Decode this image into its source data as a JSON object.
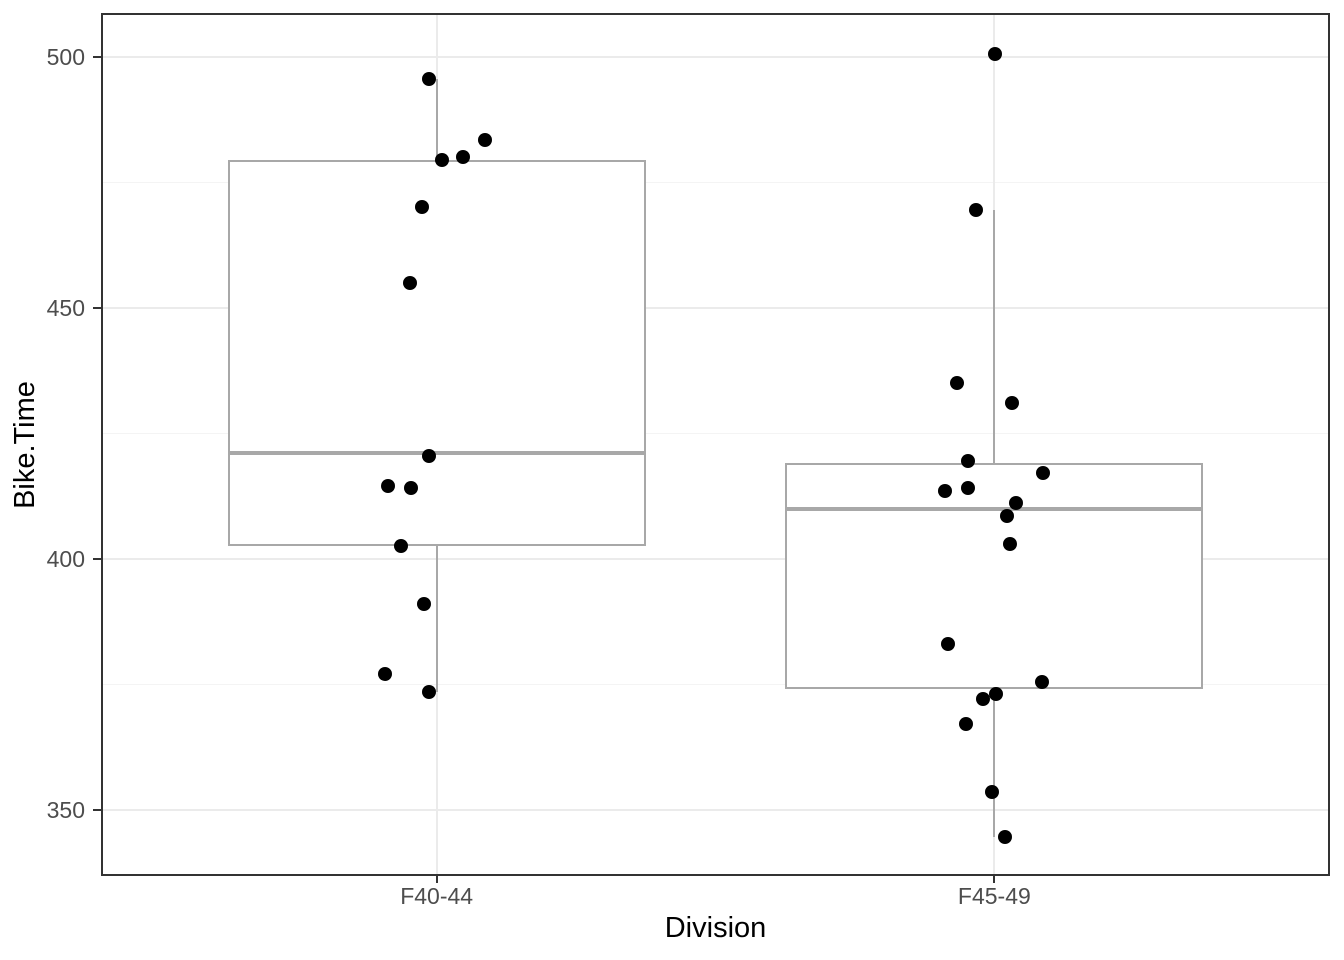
{
  "chart_data": {
    "type": "boxplot",
    "title": "",
    "xlabel": "Division",
    "ylabel": "Bike.Time",
    "categories": [
      "F40-44",
      "F45-49"
    ],
    "y_ticks": [
      500,
      450,
      400,
      350
    ],
    "y_minor_ticks": [
      475,
      425,
      375
    ],
    "ylim": [
      337,
      508.5
    ],
    "legend": "none",
    "grid": "horizontal major+minor, vertical major at each category",
    "series": [
      {
        "name": "F40-44",
        "box": {
          "q1": 402.5,
          "median": 421,
          "q3": 479.5,
          "whisker_low": 373.5,
          "whisker_high": 495.5
        },
        "points": [
          {
            "v": 495.5,
            "dx": -8
          },
          {
            "v": 483.5,
            "dx": 48
          },
          {
            "v": 480,
            "dx": 26
          },
          {
            "v": 479.5,
            "dx": 5
          },
          {
            "v": 470,
            "dx": -15
          },
          {
            "v": 455,
            "dx": -27
          },
          {
            "v": 420.5,
            "dx": -8
          },
          {
            "v": 414.5,
            "dx": -49
          },
          {
            "v": 414,
            "dx": -26
          },
          {
            "v": 402.5,
            "dx": -36
          },
          {
            "v": 391,
            "dx": -13
          },
          {
            "v": 377,
            "dx": -52
          },
          {
            "v": 373.5,
            "dx": -8
          }
        ]
      },
      {
        "name": "F45-49",
        "box": {
          "q1": 374,
          "median": 410,
          "q3": 419,
          "whisker_low": 344.5,
          "whisker_high": 469.5
        },
        "points": [
          {
            "v": 500.5,
            "dx": 1
          },
          {
            "v": 469.5,
            "dx": -18
          },
          {
            "v": 435,
            "dx": -37
          },
          {
            "v": 431,
            "dx": 18
          },
          {
            "v": 419.5,
            "dx": -26
          },
          {
            "v": 417,
            "dx": 49
          },
          {
            "v": 414,
            "dx": -26
          },
          {
            "v": 413.5,
            "dx": -49
          },
          {
            "v": 411,
            "dx": 22
          },
          {
            "v": 408.5,
            "dx": 13
          },
          {
            "v": 403,
            "dx": 16
          },
          {
            "v": 383,
            "dx": -46
          },
          {
            "v": 375.5,
            "dx": 48
          },
          {
            "v": 373,
            "dx": 2
          },
          {
            "v": 372,
            "dx": -11
          },
          {
            "v": 367,
            "dx": -28
          },
          {
            "v": 353.5,
            "dx": -2
          },
          {
            "v": 344.5,
            "dx": 11
          }
        ]
      }
    ],
    "colors": {
      "background": "#ffffff",
      "panel_border": "#333333",
      "grid_major": "#ebebeb",
      "grid_minor": "#f4f4f4",
      "box_border": "#a8a8a8",
      "box_fill": "#ffffff",
      "median": "#a8a8a8",
      "point": "#000000",
      "tick_label": "#4d4d4d",
      "axis_title": "#000000",
      "tick_mark": "#333333"
    }
  }
}
